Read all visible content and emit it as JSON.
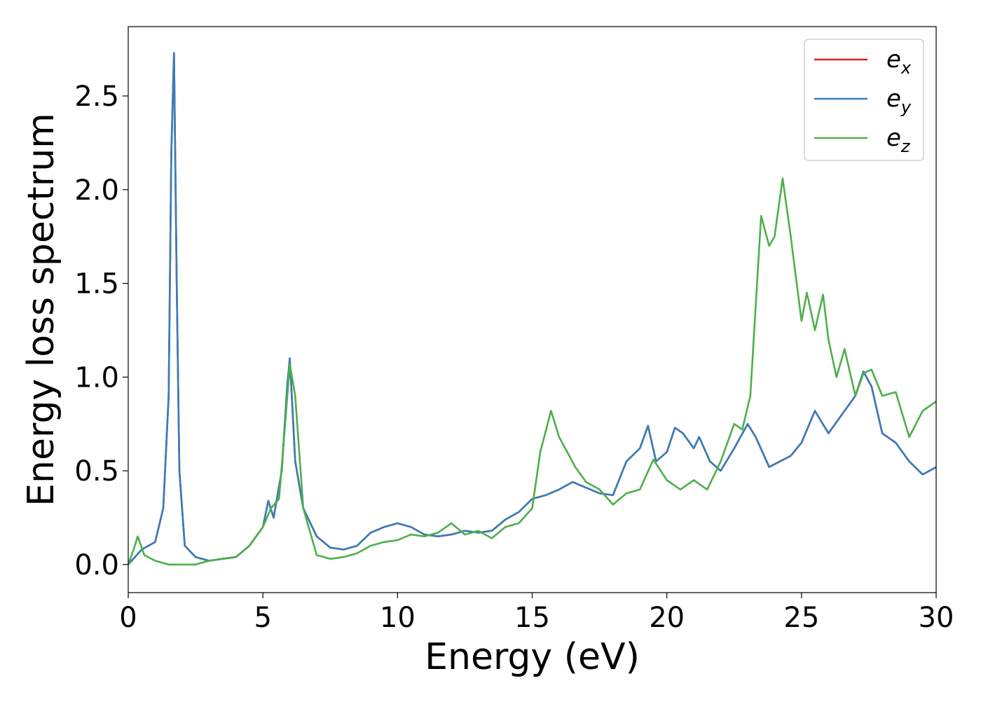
{
  "chart_data": {
    "type": "line",
    "title": "",
    "xlabel": "Energy (eV)",
    "ylabel": "Energy loss spectrum",
    "xlim": [
      0,
      30
    ],
    "ylim": [
      -0.15,
      2.87
    ],
    "xticks": [
      0,
      5,
      10,
      15,
      20,
      25,
      30
    ],
    "yticks": [
      0.0,
      0.5,
      1.0,
      1.5,
      2.0,
      2.5
    ],
    "xtick_labels": [
      "0",
      "5",
      "10",
      "15",
      "20",
      "25",
      "30"
    ],
    "ytick_labels": [
      "0.0",
      "0.5",
      "1.0",
      "1.5",
      "2.0",
      "2.5"
    ],
    "grid": false,
    "legend_position": "top-right",
    "legend": [
      {
        "base": "e",
        "sub": "x",
        "color": "#e41a1c"
      },
      {
        "base": "e",
        "sub": "y",
        "color": "#377eb8"
      },
      {
        "base": "e",
        "sub": "z",
        "color": "#4daf4a"
      }
    ],
    "series": [
      {
        "name": "e_x",
        "color": "#e41a1c",
        "x": [
          0,
          0.5,
          1.0,
          1.3,
          1.5,
          1.6,
          1.7,
          1.8,
          1.9,
          2.1,
          2.5,
          3.0,
          3.5,
          4.0,
          4.5,
          5.0,
          5.2,
          5.4,
          5.7,
          5.9,
          6.0,
          6.2,
          6.5,
          7.0,
          7.5,
          8.0,
          8.5,
          9.0,
          9.5,
          10.0,
          10.5,
          11.0,
          11.5,
          12.0,
          12.5,
          13.0,
          13.5,
          14.0,
          14.5,
          15.0,
          15.5,
          16.0,
          16.5,
          17.0,
          17.5,
          18.0,
          18.5,
          19.0,
          19.3,
          19.6,
          20.0,
          20.3,
          20.6,
          21.0,
          21.2,
          21.6,
          22.0,
          22.5,
          23.0,
          23.3,
          23.8,
          24.2,
          24.6,
          25.0,
          25.5,
          26.0,
          26.5,
          27.0,
          27.3,
          27.6,
          28.0,
          28.5,
          29.0,
          29.5,
          30.0
        ],
        "y": [
          0.0,
          0.08,
          0.12,
          0.3,
          0.9,
          2.2,
          2.73,
          1.5,
          0.5,
          0.1,
          0.04,
          0.02,
          0.03,
          0.04,
          0.1,
          0.2,
          0.34,
          0.25,
          0.5,
          0.95,
          1.1,
          0.55,
          0.3,
          0.15,
          0.09,
          0.08,
          0.1,
          0.17,
          0.2,
          0.22,
          0.2,
          0.16,
          0.15,
          0.16,
          0.18,
          0.17,
          0.18,
          0.24,
          0.28,
          0.35,
          0.37,
          0.4,
          0.44,
          0.41,
          0.38,
          0.37,
          0.55,
          0.62,
          0.74,
          0.55,
          0.6,
          0.73,
          0.7,
          0.62,
          0.68,
          0.55,
          0.5,
          0.62,
          0.75,
          0.68,
          0.52,
          0.55,
          0.58,
          0.65,
          0.82,
          0.7,
          0.8,
          0.9,
          1.03,
          0.95,
          0.7,
          0.65,
          0.55,
          0.48,
          0.52
        ]
      },
      {
        "name": "e_y",
        "color": "#377eb8",
        "x": [
          0,
          0.5,
          1.0,
          1.3,
          1.5,
          1.6,
          1.7,
          1.8,
          1.9,
          2.1,
          2.5,
          3.0,
          3.5,
          4.0,
          4.5,
          5.0,
          5.2,
          5.4,
          5.7,
          5.9,
          6.0,
          6.2,
          6.5,
          7.0,
          7.5,
          8.0,
          8.5,
          9.0,
          9.5,
          10.0,
          10.5,
          11.0,
          11.5,
          12.0,
          12.5,
          13.0,
          13.5,
          14.0,
          14.5,
          15.0,
          15.5,
          16.0,
          16.5,
          17.0,
          17.5,
          18.0,
          18.5,
          19.0,
          19.3,
          19.6,
          20.0,
          20.3,
          20.6,
          21.0,
          21.2,
          21.6,
          22.0,
          22.5,
          23.0,
          23.3,
          23.8,
          24.2,
          24.6,
          25.0,
          25.5,
          26.0,
          26.5,
          27.0,
          27.3,
          27.6,
          28.0,
          28.5,
          29.0,
          29.5,
          30.0
        ],
        "y": [
          0.0,
          0.08,
          0.12,
          0.3,
          0.9,
          2.2,
          2.73,
          1.5,
          0.5,
          0.1,
          0.04,
          0.02,
          0.03,
          0.04,
          0.1,
          0.2,
          0.34,
          0.25,
          0.5,
          0.95,
          1.1,
          0.55,
          0.3,
          0.15,
          0.09,
          0.08,
          0.1,
          0.17,
          0.2,
          0.22,
          0.2,
          0.16,
          0.15,
          0.16,
          0.18,
          0.17,
          0.18,
          0.24,
          0.28,
          0.35,
          0.37,
          0.4,
          0.44,
          0.41,
          0.38,
          0.37,
          0.55,
          0.62,
          0.74,
          0.55,
          0.6,
          0.73,
          0.7,
          0.62,
          0.68,
          0.55,
          0.5,
          0.62,
          0.75,
          0.68,
          0.52,
          0.55,
          0.58,
          0.65,
          0.82,
          0.7,
          0.8,
          0.9,
          1.03,
          0.95,
          0.7,
          0.65,
          0.55,
          0.48,
          0.52
        ]
      },
      {
        "name": "e_z",
        "color": "#4daf4a",
        "x": [
          0,
          0.2,
          0.35,
          0.6,
          1.0,
          1.5,
          2.0,
          2.5,
          3.0,
          3.5,
          4.0,
          4.5,
          5.0,
          5.3,
          5.6,
          5.8,
          6.0,
          6.2,
          6.5,
          7.0,
          7.5,
          8.0,
          8.5,
          9.0,
          9.5,
          10.0,
          10.5,
          11.0,
          11.5,
          12.0,
          12.5,
          13.0,
          13.5,
          14.0,
          14.5,
          15.0,
          15.3,
          15.7,
          16.0,
          16.3,
          16.6,
          17.0,
          17.5,
          18.0,
          18.5,
          19.0,
          19.5,
          20.0,
          20.5,
          21.0,
          21.5,
          22.0,
          22.5,
          22.8,
          23.1,
          23.5,
          23.8,
          24.0,
          24.3,
          24.6,
          25.0,
          25.2,
          25.5,
          25.8,
          26.0,
          26.3,
          26.6,
          27.0,
          27.3,
          27.6,
          28.0,
          28.5,
          29.0,
          29.5,
          30.0
        ],
        "y": [
          0.0,
          0.08,
          0.15,
          0.05,
          0.02,
          0.0,
          0.0,
          0.0,
          0.02,
          0.03,
          0.04,
          0.1,
          0.2,
          0.3,
          0.35,
          0.7,
          1.07,
          0.9,
          0.3,
          0.05,
          0.03,
          0.04,
          0.06,
          0.1,
          0.12,
          0.13,
          0.16,
          0.15,
          0.17,
          0.22,
          0.16,
          0.18,
          0.14,
          0.2,
          0.22,
          0.3,
          0.6,
          0.82,
          0.68,
          0.6,
          0.52,
          0.44,
          0.4,
          0.32,
          0.38,
          0.4,
          0.56,
          0.45,
          0.4,
          0.45,
          0.4,
          0.55,
          0.75,
          0.72,
          0.9,
          1.86,
          1.7,
          1.75,
          2.06,
          1.75,
          1.3,
          1.45,
          1.25,
          1.44,
          1.2,
          1.0,
          1.15,
          0.9,
          1.02,
          1.04,
          0.9,
          0.92,
          0.68,
          0.82,
          0.87
        ]
      }
    ]
  }
}
